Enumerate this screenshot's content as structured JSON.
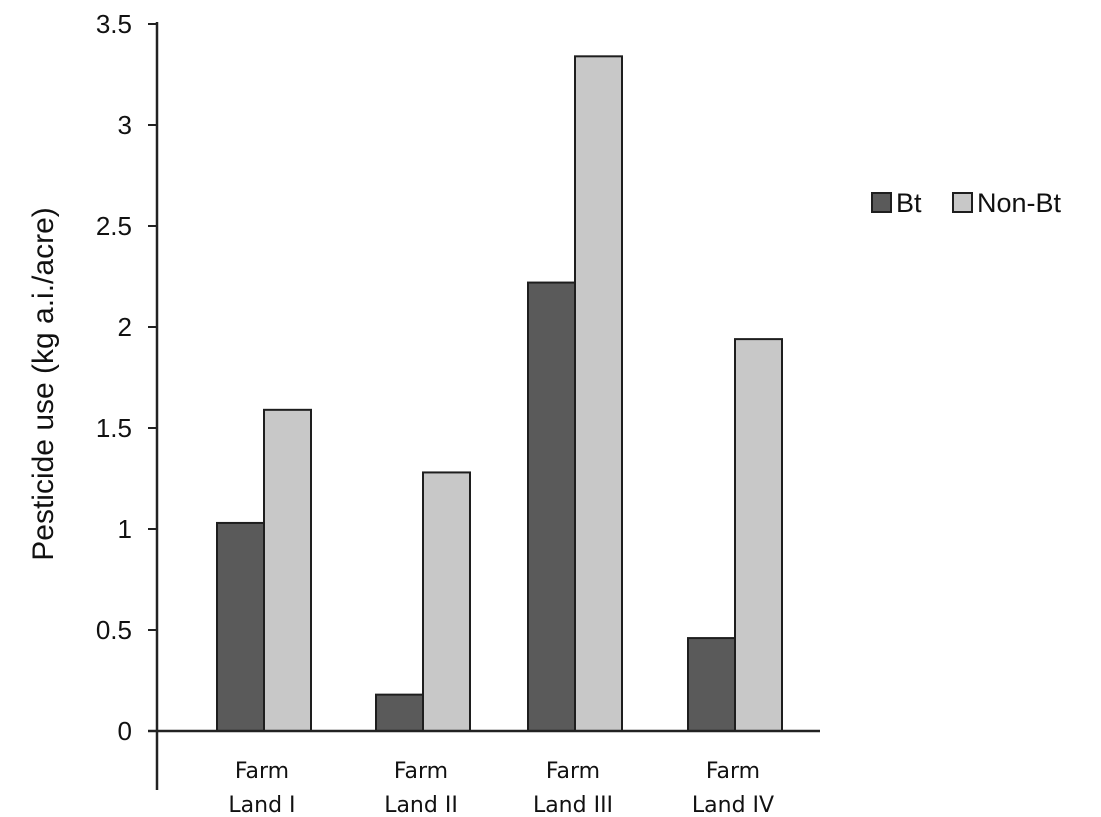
{
  "chart_data": {
    "type": "bar",
    "categories": [
      [
        "Farm",
        "Land I"
      ],
      [
        "Farm",
        "Land II"
      ],
      [
        "Farm",
        "Land III"
      ],
      [
        "Farm",
        "Land IV"
      ]
    ],
    "series": [
      {
        "name": "Bt",
        "values": [
          1.03,
          0.18,
          2.22,
          0.46
        ],
        "color": "#5a5a5a"
      },
      {
        "name": "Non-Bt",
        "values": [
          1.59,
          1.28,
          3.34,
          1.94
        ],
        "color": "#c8c8c8"
      }
    ],
    "title": "",
    "xlabel": "",
    "ylabel": "Pesticide use (kg a.i./acre)",
    "ylim": [
      0,
      3.5
    ],
    "yticks": [
      {
        "value": 0,
        "label": "0"
      },
      {
        "value": 0.5,
        "label": "0.5"
      },
      {
        "value": 1,
        "label": "1"
      },
      {
        "value": 1.5,
        "label": "1.5"
      },
      {
        "value": 2,
        "label": "2"
      },
      {
        "value": 2.5,
        "label": "2.5"
      },
      {
        "value": 3,
        "label": "3"
      },
      {
        "value": 3.5,
        "label": "3.5"
      }
    ],
    "grid": false,
    "legend_position": "right"
  }
}
